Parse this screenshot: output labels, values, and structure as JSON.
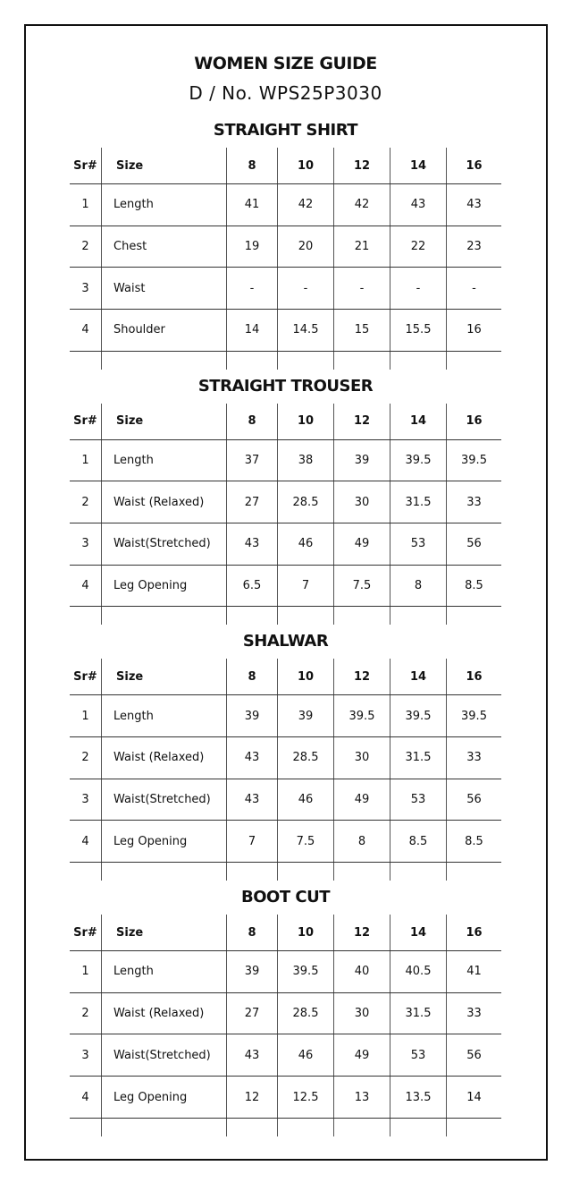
{
  "title": "WOMEN SIZE GUIDE",
  "design_no": "D / No. WPS25P3030",
  "header": {
    "sr": "Sr#",
    "size": "Size",
    "sizes": [
      "8",
      "10",
      "12",
      "14",
      "16"
    ]
  },
  "sections": [
    {
      "title": "STRAIGHT SHIRT",
      "rows": [
        {
          "sr": "1",
          "label": "Length",
          "values": [
            "41",
            "42",
            "42",
            "43",
            "43"
          ]
        },
        {
          "sr": "2",
          "label": "Chest",
          "values": [
            "19",
            "20",
            "21",
            "22",
            "23"
          ]
        },
        {
          "sr": "3",
          "label": "Waist",
          "values": [
            "-",
            "-",
            "-",
            "-",
            "-"
          ]
        },
        {
          "sr": "4",
          "label": "Shoulder",
          "values": [
            "14",
            "14.5",
            "15",
            "15.5",
            "16"
          ]
        }
      ]
    },
    {
      "title": "STRAIGHT TROUSER",
      "rows": [
        {
          "sr": "1",
          "label": "Length",
          "values": [
            "37",
            "38",
            "39",
            "39.5",
            "39.5"
          ]
        },
        {
          "sr": "2",
          "label": "Waist (Relaxed)",
          "values": [
            "27",
            "28.5",
            "30",
            "31.5",
            "33"
          ]
        },
        {
          "sr": "3",
          "label": "Waist(Stretched)",
          "values": [
            "43",
            "46",
            "49",
            "53",
            "56"
          ]
        },
        {
          "sr": "4",
          "label": "Leg Opening",
          "values": [
            "6.5",
            "7",
            "7.5",
            "8",
            "8.5"
          ]
        }
      ]
    },
    {
      "title": "SHALWAR",
      "rows": [
        {
          "sr": "1",
          "label": "Length",
          "values": [
            "39",
            "39",
            "39.5",
            "39.5",
            "39.5"
          ]
        },
        {
          "sr": "2",
          "label": "Waist (Relaxed)",
          "values": [
            "43",
            "28.5",
            "30",
            "31.5",
            "33"
          ]
        },
        {
          "sr": "3",
          "label": "Waist(Stretched)",
          "values": [
            "43",
            "46",
            "49",
            "53",
            "56"
          ]
        },
        {
          "sr": "4",
          "label": "Leg Opening",
          "values": [
            "7",
            "7.5",
            "8",
            "8.5",
            "8.5"
          ]
        }
      ]
    },
    {
      "title": "BOOT CUT",
      "rows": [
        {
          "sr": "1",
          "label": "Length",
          "values": [
            "39",
            "39.5",
            "40",
            "40.5",
            "41"
          ]
        },
        {
          "sr": "2",
          "label": "Waist (Relaxed)",
          "values": [
            "27",
            "28.5",
            "30",
            "31.5",
            "33"
          ]
        },
        {
          "sr": "3",
          "label": "Waist(Stretched)",
          "values": [
            "43",
            "46",
            "49",
            "53",
            "56"
          ]
        },
        {
          "sr": "4",
          "label": "Leg Opening",
          "values": [
            "12",
            "12.5",
            "13",
            "13.5",
            "14"
          ]
        }
      ]
    }
  ]
}
